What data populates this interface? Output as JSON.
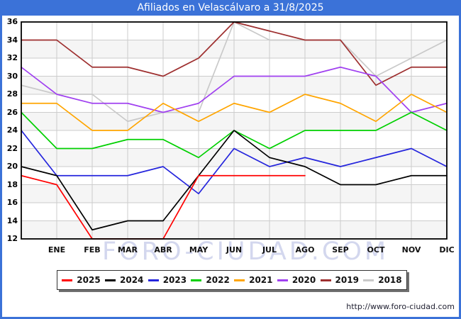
{
  "window": {
    "title": "Afiliados en Velascálvaro a 31/8/2025"
  },
  "watermark": "FORO-CIUDAD.COM",
  "footer": {
    "url": "http://www.foro-ciudad.com"
  },
  "colors": {
    "titlebar": "#3b72d8",
    "frame": "#3b72d8",
    "gridline": "#cccccc",
    "band": "#f5f5f5",
    "plot_border": "#000000",
    "watermark": "#d3d7ee"
  },
  "chart_data": {
    "type": "line",
    "title": "Afiliados en Velascálvaro a 31/8/2025",
    "xlabel": "",
    "ylabel": "",
    "ylim": [
      12,
      36
    ],
    "y_ticks": [
      36,
      34,
      32,
      30,
      28,
      26,
      24,
      22,
      20,
      18,
      16,
      14,
      12
    ],
    "x_tick_labels": [
      "ENE",
      "FEB",
      "MAR",
      "ABR",
      "MAY",
      "JUN",
      "JUL",
      "AGO",
      "SEP",
      "OCT",
      "NOV",
      "DIC"
    ],
    "points_per_series": 13,
    "first_point_at_left_edge": true,
    "grid": true,
    "legend_position": "bottom",
    "series": [
      {
        "name": "2025",
        "color": "#ff0000",
        "values": [
          19,
          18,
          12,
          12,
          12,
          19,
          19,
          19,
          19
        ]
      },
      {
        "name": "2024",
        "color": "#000000",
        "values": [
          20,
          19,
          13,
          14,
          14,
          19,
          24,
          21,
          20,
          18,
          18,
          19,
          19
        ]
      },
      {
        "name": "2023",
        "color": "#2525dd",
        "values": [
          24,
          19,
          19,
          19,
          20,
          17,
          22,
          20,
          21,
          20,
          21,
          22,
          20
        ]
      },
      {
        "name": "2022",
        "color": "#00d000",
        "values": [
          26,
          22,
          22,
          23,
          23,
          21,
          24,
          22,
          24,
          24,
          24,
          26,
          24
        ]
      },
      {
        "name": "2021",
        "color": "#ffa500",
        "values": [
          27,
          27,
          24,
          24,
          27,
          25,
          27,
          26,
          28,
          27,
          25,
          28,
          26
        ]
      },
      {
        "name": "2020",
        "color": "#a040f0",
        "values": [
          31,
          28,
          27,
          27,
          26,
          27,
          30,
          30,
          30,
          31,
          30,
          26,
          27
        ]
      },
      {
        "name": "2019",
        "color": "#9e2f2f",
        "values": [
          34,
          34,
          31,
          31,
          30,
          32,
          36,
          35,
          34,
          34,
          29,
          31,
          31
        ]
      },
      {
        "name": "2018",
        "color": "#c9c9c9",
        "values": [
          29,
          28,
          28,
          25,
          26,
          26,
          36,
          34,
          34,
          34,
          30,
          32,
          34
        ]
      }
    ]
  }
}
